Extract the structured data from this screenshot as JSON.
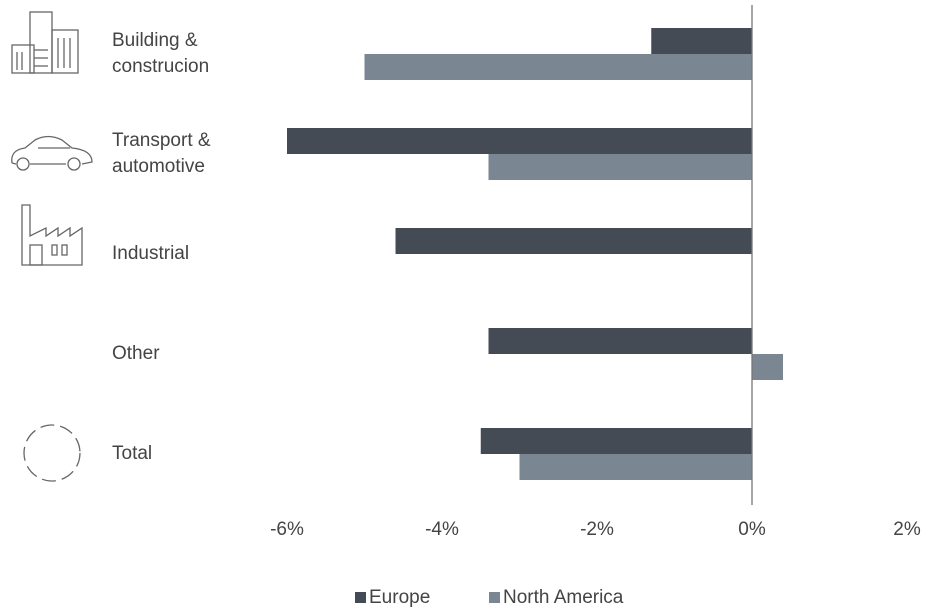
{
  "chart_data": {
    "type": "hbar",
    "categories": [
      "Building & construcion",
      "Transport & automotive",
      "Industrial",
      "Other",
      "Total"
    ],
    "series": [
      {
        "name": "Europe",
        "color": "#454b55",
        "values": [
          -1.3,
          -6.0,
          -4.6,
          -3.4,
          -3.5
        ]
      },
      {
        "name": "North America",
        "color": "#7a8792",
        "values": [
          -5.0,
          -3.4,
          null,
          0.4,
          -3.0
        ]
      }
    ],
    "xlim": [
      -6,
      2
    ],
    "xticks": [
      {
        "value": -6,
        "label": "-6%"
      },
      {
        "value": -4,
        "label": "-4%"
      },
      {
        "value": -2,
        "label": "-2%"
      },
      {
        "value": 0,
        "label": "0%"
      },
      {
        "value": 2,
        "label": "2%"
      }
    ],
    "legend": "bottom"
  }
}
